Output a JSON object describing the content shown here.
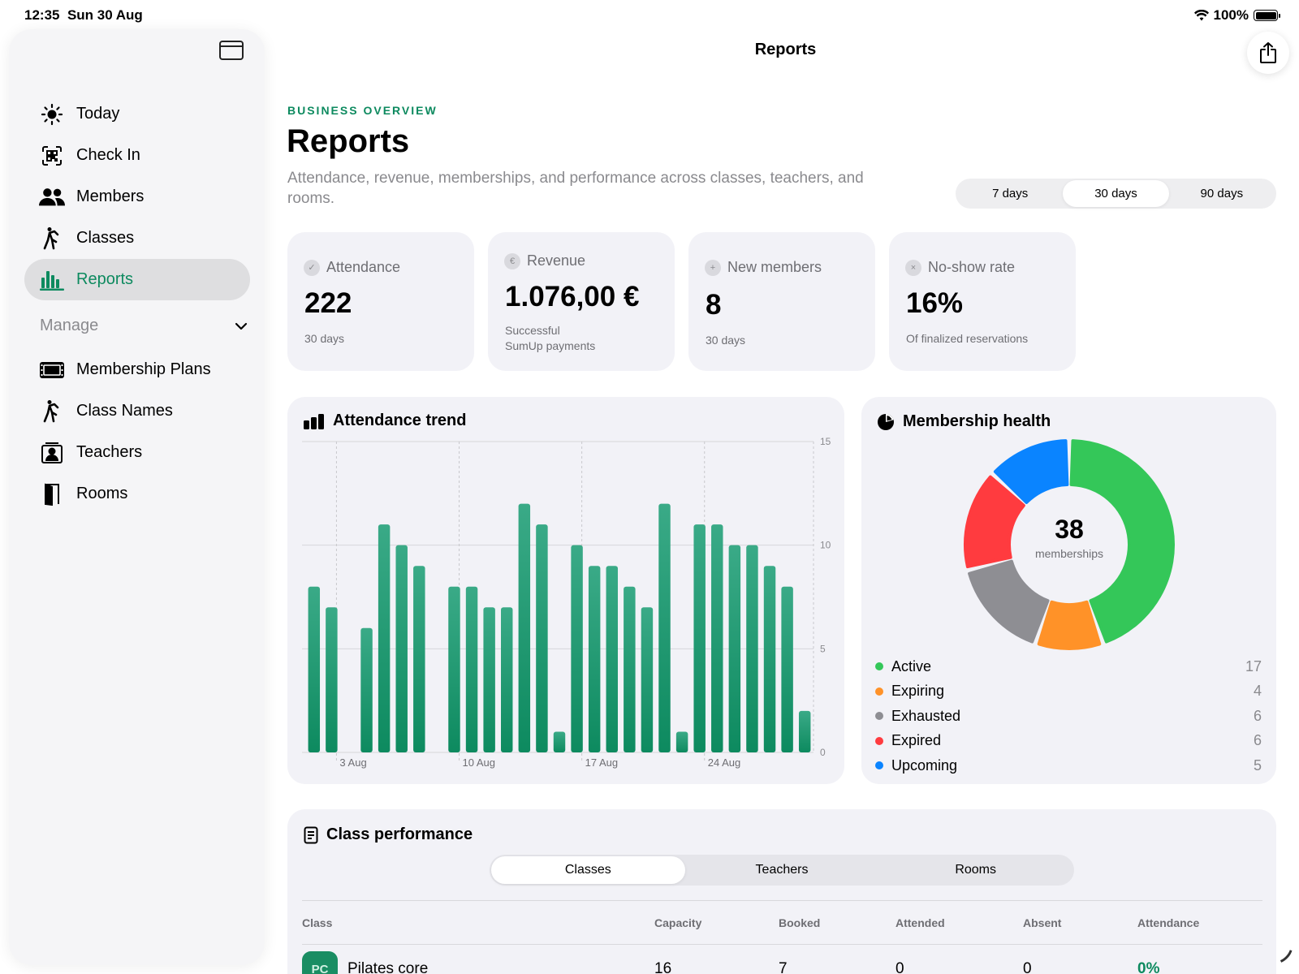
{
  "status_bar": {
    "time": "12:35",
    "date": "Sun 30 Aug",
    "battery": "100%",
    "battery_level": 1.0
  },
  "sidebar": {
    "items": [
      {
        "label": "Today",
        "icon": "sun-icon",
        "active": false
      },
      {
        "label": "Check In",
        "icon": "qr-scan-icon",
        "active": false
      },
      {
        "label": "Members",
        "icon": "people-icon",
        "active": false
      },
      {
        "label": "Classes",
        "icon": "figure-run-icon",
        "active": false
      },
      {
        "label": "Reports",
        "icon": "bar-chart-icon",
        "active": true
      }
    ],
    "manage_label": "Manage",
    "manage_items": [
      {
        "label": "Membership Plans",
        "icon": "ticket-icon"
      },
      {
        "label": "Class Names",
        "icon": "figure-run-icon"
      },
      {
        "label": "Teachers",
        "icon": "person-board-icon"
      },
      {
        "label": "Rooms",
        "icon": "door-icon"
      }
    ]
  },
  "topbar": {
    "title": "Reports"
  },
  "header": {
    "eyebrow": "BUSINESS OVERVIEW",
    "title": "Reports",
    "subtitle": "Attendance, revenue, memberships, and performance across classes, teachers, and rooms."
  },
  "range": {
    "options": [
      "7 days",
      "30 days",
      "90 days"
    ],
    "selected": "30 days"
  },
  "stats": {
    "attendance": {
      "label": "Attendance",
      "value": "222",
      "note": "30 days"
    },
    "revenue": {
      "label": "Revenue",
      "value": "1.076,00 €",
      "note1": "Successful",
      "note2": "SumUp payments"
    },
    "new_members": {
      "label": "New members",
      "value": "8",
      "note": "30 days"
    },
    "no_show": {
      "label": "No-show rate",
      "value": "16%",
      "note": "Of finalized reservations"
    }
  },
  "colors": {
    "accent": "#0d8a5f",
    "bar_top": "#3aaa87",
    "bar_bottom": "#0d8a5f"
  },
  "chart_data": [
    {
      "type": "bar",
      "title": "Attendance trend",
      "xlabel": "",
      "ylabel": "",
      "ylim": [
        0,
        15
      ],
      "yticks": [
        0,
        5,
        10,
        15
      ],
      "xticks": [
        "3 Aug",
        "10 Aug",
        "17 Aug",
        "24 Aug"
      ],
      "xtick_index": [
        2,
        9,
        16,
        23
      ],
      "values": [
        8,
        7,
        0,
        6,
        11,
        10,
        9,
        0,
        8,
        8,
        7,
        7,
        12,
        11,
        1,
        10,
        9,
        9,
        8,
        7,
        12,
        1,
        11,
        11,
        10,
        10,
        9,
        8,
        2
      ],
      "grid": true
    },
    {
      "type": "pie",
      "title": "Membership health",
      "center_value": "38",
      "center_label": "memberships",
      "slices": [
        {
          "label": "Active",
          "value": 17,
          "color": "#34c759"
        },
        {
          "label": "Expiring",
          "value": 4,
          "color": "#ff9228"
        },
        {
          "label": "Exhausted",
          "value": 6,
          "color": "#8e8e93"
        },
        {
          "label": "Expired",
          "value": 6,
          "color": "#ff3b3f"
        },
        {
          "label": "Upcoming",
          "value": 5,
          "color": "#0a84ff"
        }
      ]
    }
  ],
  "performance": {
    "title": "Class performance",
    "tabs": [
      "Classes",
      "Teachers",
      "Rooms"
    ],
    "selected_tab": "Classes",
    "columns": [
      "Class",
      "Capacity",
      "Booked",
      "Attended",
      "Absent",
      "Attendance"
    ],
    "rows": [
      {
        "badge": "PC",
        "class": "Pilates core",
        "capacity": "16",
        "booked": "7",
        "attended": "0",
        "absent": "0",
        "attendance": "0%"
      }
    ]
  }
}
